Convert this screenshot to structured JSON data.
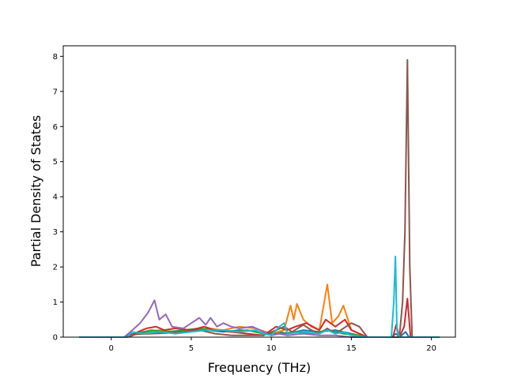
{
  "chart_data": {
    "type": "line",
    "xlabel": "Frequency (THz)",
    "ylabel": "Partial Density of States",
    "xlim": [
      -3,
      21.5
    ],
    "ylim": [
      0,
      8.3
    ],
    "xticks": [
      0,
      5,
      10,
      15,
      20
    ],
    "yticks": [
      0,
      1,
      2,
      3,
      4,
      5,
      6,
      7,
      8
    ],
    "grid": false,
    "legend": "none",
    "series": [
      {
        "color": "#1f77b4",
        "points": [
          [
            -2,
            0
          ],
          [
            0.8,
            0
          ],
          [
            1.2,
            0.08
          ],
          [
            2,
            0.12
          ],
          [
            3,
            0.15
          ],
          [
            4,
            0.12
          ],
          [
            5,
            0.18
          ],
          [
            6,
            0.2
          ],
          [
            7,
            0.15
          ],
          [
            8,
            0.2
          ],
          [
            9,
            0.18
          ],
          [
            10,
            0.05
          ],
          [
            10.5,
            0.15
          ],
          [
            11,
            0.1
          ],
          [
            12,
            0.2
          ],
          [
            13,
            0.15
          ],
          [
            14,
            0.2
          ],
          [
            15,
            0.1
          ],
          [
            16,
            0
          ],
          [
            17.5,
            0
          ],
          [
            17.8,
            0.1
          ],
          [
            18,
            0
          ],
          [
            18.4,
            0.15
          ],
          [
            18.6,
            0
          ],
          [
            20.5,
            0
          ]
        ]
      },
      {
        "color": "#ff7f0e",
        "points": [
          [
            -2,
            0
          ],
          [
            1,
            0
          ],
          [
            2,
            0.15
          ],
          [
            3,
            0.2
          ],
          [
            4,
            0.15
          ],
          [
            5,
            0.2
          ],
          [
            6,
            0.25
          ],
          [
            7,
            0.2
          ],
          [
            8,
            0.3
          ],
          [
            9,
            0.25
          ],
          [
            10,
            0.1
          ],
          [
            10.8,
            0.2
          ],
          [
            11.2,
            0.9
          ],
          [
            11.4,
            0.5
          ],
          [
            11.6,
            0.95
          ],
          [
            12,
            0.5
          ],
          [
            12.5,
            0.3
          ],
          [
            13,
            0.2
          ],
          [
            13.5,
            1.5
          ],
          [
            13.8,
            0.4
          ],
          [
            14.2,
            0.6
          ],
          [
            14.5,
            0.9
          ],
          [
            15,
            0.2
          ],
          [
            15.5,
            0.1
          ],
          [
            16,
            0
          ],
          [
            20.5,
            0
          ]
        ]
      },
      {
        "color": "#2ca02c",
        "points": [
          [
            -2,
            0
          ],
          [
            1,
            0
          ],
          [
            1.5,
            0.1
          ],
          [
            2.5,
            0.2
          ],
          [
            3.5,
            0.15
          ],
          [
            4.5,
            0.2
          ],
          [
            5.5,
            0.25
          ],
          [
            6.5,
            0.2
          ],
          [
            7.5,
            0.15
          ],
          [
            8.5,
            0.2
          ],
          [
            9.5,
            0.1
          ],
          [
            10.5,
            0.1
          ],
          [
            11.5,
            0.15
          ],
          [
            12.5,
            0.1
          ],
          [
            13.5,
            0.2
          ],
          [
            14.5,
            0.1
          ],
          [
            15.5,
            0.05
          ],
          [
            16,
            0
          ],
          [
            20.5,
            0
          ]
        ]
      },
      {
        "color": "#d62728",
        "points": [
          [
            -2,
            0
          ],
          [
            1,
            0
          ],
          [
            1.5,
            0.12
          ],
          [
            2.2,
            0.25
          ],
          [
            2.8,
            0.3
          ],
          [
            3.3,
            0.2
          ],
          [
            4,
            0.25
          ],
          [
            5,
            0.2
          ],
          [
            5.8,
            0.3
          ],
          [
            6.5,
            0.2
          ],
          [
            7.5,
            0.15
          ],
          [
            8.5,
            0.1
          ],
          [
            9.5,
            0.05
          ],
          [
            10.3,
            0.3
          ],
          [
            11,
            0.2
          ],
          [
            11.5,
            0.3
          ],
          [
            12.2,
            0.4
          ],
          [
            13,
            0.2
          ],
          [
            13.4,
            0.5
          ],
          [
            14,
            0.3
          ],
          [
            14.6,
            0.5
          ],
          [
            15,
            0.2
          ],
          [
            16,
            0
          ],
          [
            17.6,
            0
          ],
          [
            17.8,
            0.35
          ],
          [
            18,
            0
          ],
          [
            18.3,
            0.3
          ],
          [
            18.5,
            1.1
          ],
          [
            18.7,
            0
          ],
          [
            20.5,
            0
          ]
        ]
      },
      {
        "color": "#9467bd",
        "points": [
          [
            -2,
            0
          ],
          [
            0.8,
            0
          ],
          [
            1.2,
            0.15
          ],
          [
            1.8,
            0.4
          ],
          [
            2.3,
            0.7
          ],
          [
            2.7,
            1.05
          ],
          [
            3,
            0.5
          ],
          [
            3.4,
            0.65
          ],
          [
            3.8,
            0.3
          ],
          [
            4.5,
            0.25
          ],
          [
            5,
            0.4
          ],
          [
            5.5,
            0.55
          ],
          [
            5.9,
            0.35
          ],
          [
            6.2,
            0.55
          ],
          [
            6.6,
            0.3
          ],
          [
            7,
            0.4
          ],
          [
            7.5,
            0.3
          ],
          [
            8,
            0.25
          ],
          [
            8.8,
            0.3
          ],
          [
            9.3,
            0.2
          ],
          [
            10,
            0.05
          ],
          [
            10.5,
            0.1
          ],
          [
            11,
            0.05
          ],
          [
            12,
            0.1
          ],
          [
            13,
            0.05
          ],
          [
            14,
            0.05
          ],
          [
            15,
            0
          ],
          [
            20.5,
            0
          ]
        ]
      },
      {
        "color": "#8c564b",
        "points": [
          [
            -2,
            0
          ],
          [
            1,
            0
          ],
          [
            1.5,
            0.08
          ],
          [
            2.5,
            0.1
          ],
          [
            3.5,
            0.12
          ],
          [
            4.5,
            0.15
          ],
          [
            5.5,
            0.2
          ],
          [
            6.5,
            0.1
          ],
          [
            7.5,
            0.05
          ],
          [
            8.5,
            0.05
          ],
          [
            9.5,
            0.05
          ],
          [
            10.3,
            0.2
          ],
          [
            10.8,
            0.3
          ],
          [
            11.3,
            0.15
          ],
          [
            12,
            0.35
          ],
          [
            12.5,
            0.2
          ],
          [
            13,
            0.1
          ],
          [
            13.5,
            0.25
          ],
          [
            14,
            0.1
          ],
          [
            14.5,
            0.25
          ],
          [
            15,
            0.4
          ],
          [
            15.5,
            0.3
          ],
          [
            16,
            0
          ],
          [
            18,
            0
          ],
          [
            18.2,
            1
          ],
          [
            18.35,
            3
          ],
          [
            18.5,
            7.9
          ],
          [
            18.65,
            2
          ],
          [
            18.8,
            0
          ],
          [
            20.5,
            0
          ]
        ]
      },
      {
        "color": "#17becf",
        "points": [
          [
            -2,
            0
          ],
          [
            1,
            0
          ],
          [
            1.3,
            0.15
          ],
          [
            2,
            0.1
          ],
          [
            3,
            0.15
          ],
          [
            4,
            0.1
          ],
          [
            5,
            0.15
          ],
          [
            6,
            0.2
          ],
          [
            7,
            0.2
          ],
          [
            8,
            0.15
          ],
          [
            9,
            0.2
          ],
          [
            9.5,
            0.1
          ],
          [
            10,
            0.05
          ],
          [
            10.5,
            0.3
          ],
          [
            10.8,
            0.4
          ],
          [
            11,
            0.1
          ],
          [
            12,
            0.15
          ],
          [
            13,
            0.1
          ],
          [
            13.5,
            0.2
          ],
          [
            14,
            0.1
          ],
          [
            14.5,
            0.15
          ],
          [
            15,
            0.05
          ],
          [
            16,
            0
          ],
          [
            17.5,
            0
          ],
          [
            17.65,
            1
          ],
          [
            17.75,
            2.3
          ],
          [
            17.85,
            0.2
          ],
          [
            18,
            0
          ],
          [
            20.5,
            0
          ]
        ]
      }
    ]
  }
}
